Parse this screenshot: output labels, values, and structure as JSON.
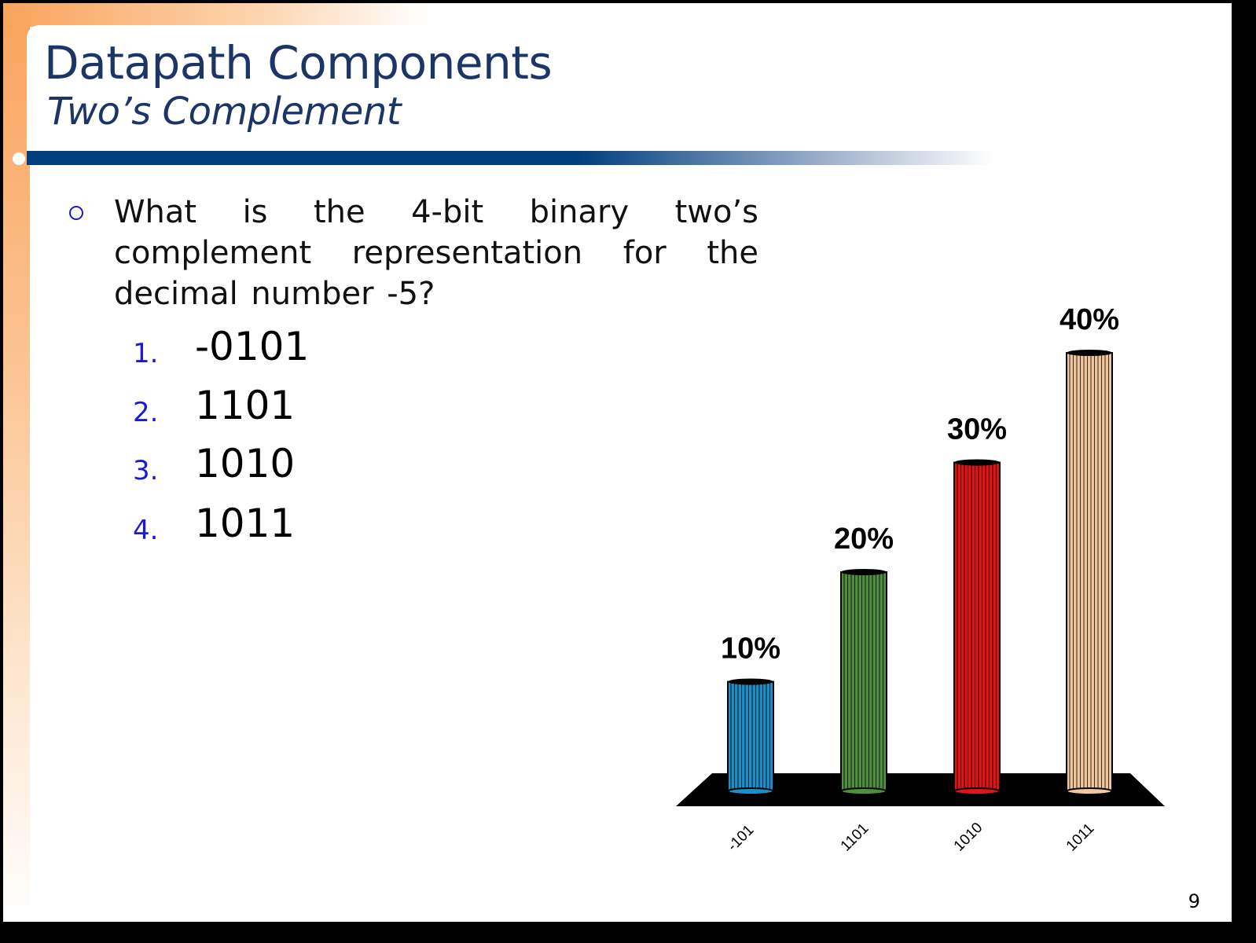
{
  "slide": {
    "title": "Datapath Components",
    "subtitle": "Two’s Complement",
    "question": "What is the 4-bit binary two’s complement representation for the decimal number -5?",
    "options": [
      {
        "num": "1.",
        "text": "-0101"
      },
      {
        "num": "2.",
        "text": "1101"
      },
      {
        "num": "3.",
        "text": "1010"
      },
      {
        "num": "4.",
        "text": "1011"
      }
    ],
    "page_number": "9"
  },
  "colors": {
    "title": "#1b3566",
    "accent_blue": "#003f7d",
    "orange": "#f9a35c",
    "option_number": "#1a1ad4"
  },
  "chart_data": {
    "type": "bar",
    "categories": [
      "-101",
      "1101",
      "1010",
      "1011"
    ],
    "values": [
      10,
      20,
      30,
      40
    ],
    "data_labels": [
      "10%",
      "20%",
      "30%",
      "40%"
    ],
    "colors": [
      "#1b8fc8",
      "#4f8f3c",
      "#e31414",
      "#f3c79c"
    ],
    "title": "",
    "xlabel": "",
    "ylabel": "",
    "ylim": [
      0,
      40
    ],
    "style": "3d-cylinder",
    "legend": "none",
    "grid": false
  }
}
